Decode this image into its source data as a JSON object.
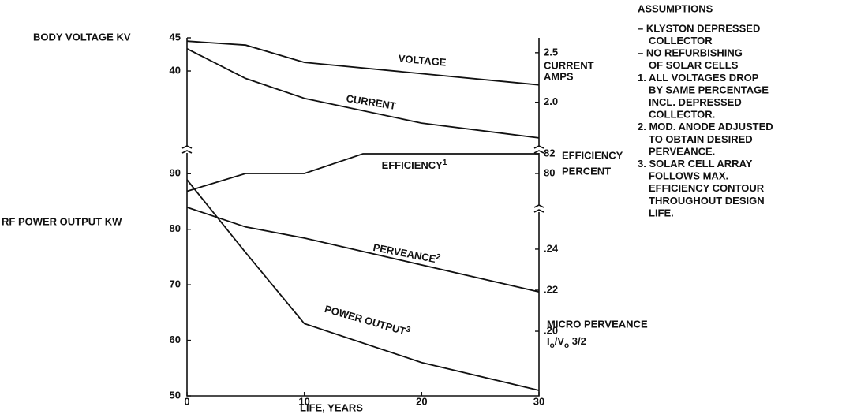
{
  "chart_data": [
    {
      "type": "line",
      "ylabel": "BODY VOLTAGE KV",
      "ylim": [
        28.1,
        45.0
      ],
      "yticks": [
        40,
        45
      ],
      "y2label": [
        "CURRENT",
        "AMPS"
      ],
      "y2lim": [
        1.52,
        2.65
      ],
      "y2ticks": [
        {
          "value": 2.0,
          "label": "2.0"
        },
        2.5
      ],
      "series": [
        {
          "name": "VOLTAGE",
          "color": "#111111",
          "x": [
            0,
            5,
            10,
            30
          ],
          "values": [
            44.5,
            43.9,
            41.3,
            37.9
          ]
        },
        {
          "name": "CURRENT",
          "color": "#111111",
          "axis": "y2",
          "x": [
            0,
            5,
            10,
            20,
            30
          ],
          "values": [
            2.54,
            2.24,
            2.04,
            1.79,
            1.64
          ]
        }
      ]
    },
    {
      "type": "line",
      "ylabel": "RF POWER OUTPUT KW",
      "ylim": [
        50,
        94.3
      ],
      "yticks": [
        50,
        60,
        70,
        80,
        90
      ],
      "y2label": [
        "EFFICIENCY",
        "PERCENT"
      ],
      "y2lim": [
        76.4,
        82.4
      ],
      "y2ticks": [
        80,
        82
      ],
      "series": [
        {
          "name": "POWER OUTPUT",
          "footnote": "3",
          "color": "#111111",
          "x": [
            0,
            5,
            10,
            20,
            30
          ],
          "values": [
            88.9,
            75.8,
            63.0,
            56.0,
            51.0
          ]
        },
        {
          "name": "EFFICIENCY",
          "footnote": "1",
          "color": "#111111",
          "axis": "y2",
          "x": [
            0,
            5,
            10,
            15,
            30
          ],
          "values": [
            78.2,
            80,
            80,
            82,
            82
          ]
        }
      ]
    },
    {
      "type": "line",
      "ylabel": "MICRO PERVEANCE",
      "formula": [
        "I",
        "o",
        "/V",
        "o",
        " 3/2"
      ],
      "ylim": [
        0.1685,
        0.2615
      ],
      "yticks": [
        {
          "value": 0.2,
          "label": ".20"
        },
        {
          "value": 0.22,
          "label": ".22"
        },
        {
          "value": 0.24,
          "label": ".24"
        }
      ],
      "xlabel": "LIFE, YEARS",
      "xlim": [
        0,
        30
      ],
      "xticks": [
        0,
        10,
        20,
        30
      ],
      "series": [
        {
          "name": "PERVEANCE",
          "footnote": "2",
          "color": "#111111",
          "x": [
            0,
            5,
            10,
            30
          ],
          "values": [
            0.2604,
            0.2508,
            0.2454,
            0.2192
          ]
        }
      ]
    }
  ],
  "assumptions": {
    "title": "ASSUMPTIONS",
    "lines": [
      "– KLYSTON DEPRESSED",
      "COLLECTOR",
      "– NO REFURBISHING",
      "OF SOLAR CELLS",
      "1. ALL VOLTAGES DROP",
      "BY SAME PERCENTAGE",
      "INCL. DEPRESSED",
      "COLLECTOR.",
      "2. MOD. ANODE ADJUSTED",
      "TO OBTAIN DESIRED",
      "PERVEANCE.",
      "3. SOLAR CELL ARRAY",
      "FOLLOWS MAX.",
      "EFFICIENCY CONTOUR",
      "THROUGHOUT DESIGN",
      "LIFE."
    ]
  }
}
